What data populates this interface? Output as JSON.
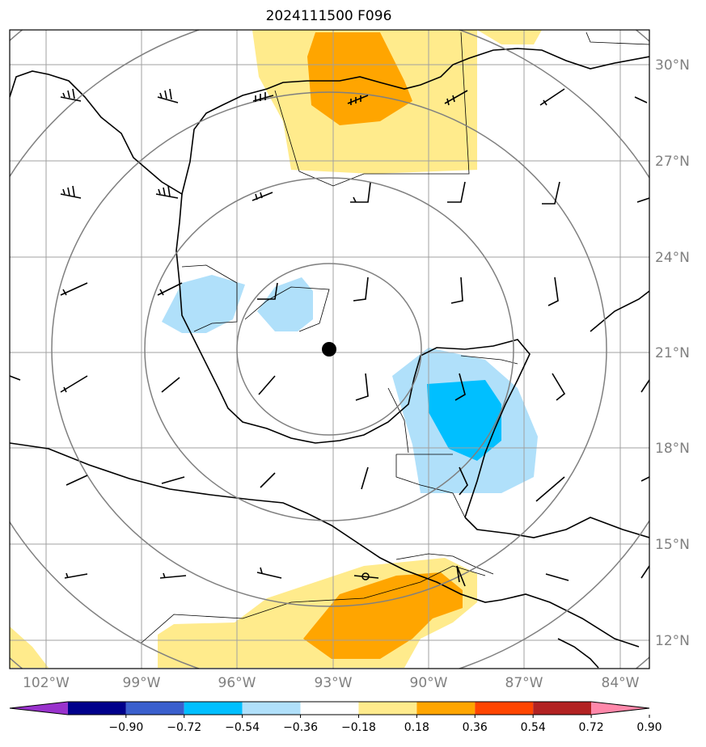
{
  "title": "2024111500 F096",
  "map": {
    "lat_labels": [
      "30°N",
      "27°N",
      "24°N",
      "21°N",
      "18°N",
      "15°N",
      "12°N"
    ],
    "lon_labels": [
      "102°W",
      "99°W",
      "96°W",
      "93°W",
      "90°W",
      "87°W",
      "84°W"
    ],
    "storm_center": {
      "lon": -93.0,
      "lat": 21.1
    },
    "range_rings": "concentric distance circles around storm center",
    "colors": {
      "neg_light": "#b0e0fa",
      "neg_mid": "#00bfff",
      "pos_light": "#ffeb8c",
      "pos_mid": "#ffa500",
      "grid": "#a0a0a0",
      "ring": "#808080"
    }
  },
  "colorbar": {
    "ticks": [
      "−0.90",
      "−0.72",
      "−0.54",
      "−0.36",
      "−0.18",
      "0.18",
      "0.36",
      "0.54",
      "0.72",
      "0.90"
    ],
    "colors": [
      "#9932cc",
      "#00008b",
      "#3a5fcd",
      "#00bfff",
      "#b0e0fa",
      "#ffffff",
      "#ffeb8c",
      "#ffa500",
      "#ff4500",
      "#b22222",
      "#ff88aa"
    ]
  }
}
